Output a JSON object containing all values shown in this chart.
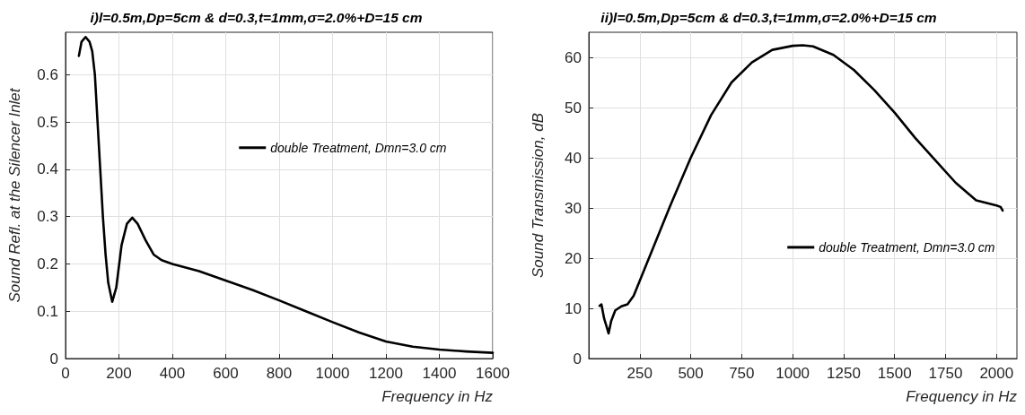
{
  "chart_data": [
    {
      "type": "line",
      "title": "i)l=0.5m,Dp=5cm & d=0.3,t=1mm,σ=2.0%+D=15 cm",
      "xlabel": "Frequency in Hz",
      "ylabel": "Sound Refl. at the Silencer Inlet",
      "xlim": [
        0,
        1600
      ],
      "xticks": [
        0,
        200,
        400,
        600,
        800,
        1000,
        1200,
        1400,
        1600
      ],
      "ylim": [
        0,
        0.69
      ],
      "yticks": [
        0,
        0.1,
        0.2,
        0.3,
        0.4,
        0.5,
        0.6
      ],
      "grid": true,
      "legend": "top right",
      "marker": "none",
      "line_style": "solid",
      "x": [
        50,
        60,
        75,
        90,
        100,
        110,
        120,
        130,
        140,
        150,
        160,
        175,
        190,
        210,
        230,
        250,
        270,
        300,
        330,
        360,
        400,
        500,
        600,
        700,
        800,
        900,
        1000,
        1100,
        1200,
        1300,
        1400,
        1500,
        1600
      ],
      "series": [
        {
          "name": "double Treatment, Dmn=3.0 cm",
          "color": "#000000",
          "values": [
            0.64,
            0.67,
            0.68,
            0.67,
            0.65,
            0.6,
            0.5,
            0.4,
            0.3,
            0.22,
            0.16,
            0.12,
            0.15,
            0.24,
            0.285,
            0.298,
            0.285,
            0.25,
            0.22,
            0.208,
            0.2,
            0.185,
            0.165,
            0.145,
            0.123,
            0.1,
            0.077,
            0.055,
            0.036,
            0.025,
            0.019,
            0.015,
            0.012
          ]
        }
      ]
    },
    {
      "type": "line",
      "title": "ii)l=0.5m,Dp=5cm & d=0.3,t=1mm,σ=2.0%+D=15 cm",
      "xlabel": "Frequency in Hz",
      "ylabel": "Sound Transmission, dB",
      "xlim": [
        0,
        2100
      ],
      "xticks": [
        250,
        500,
        750,
        1000,
        1250,
        1500,
        1750,
        2000
      ],
      "ylim": [
        0,
        65
      ],
      "yticks": [
        0,
        10,
        20,
        30,
        40,
        50,
        60
      ],
      "grid": true,
      "legend": "bottom right",
      "marker": "none",
      "line_style": "solid",
      "x": [
        53,
        62,
        75,
        90,
        97,
        110,
        130,
        160,
        190,
        220,
        250,
        300,
        350,
        400,
        500,
        600,
        700,
        800,
        900,
        1000,
        1050,
        1100,
        1200,
        1300,
        1400,
        1500,
        1600,
        1700,
        1800,
        1900,
        2000,
        2020,
        2030
      ],
      "series": [
        {
          "name": "double Treatment, Dmn=3.0 cm",
          "color": "#000000",
          "values": [
            10.5,
            10.8,
            8,
            6,
            5,
            7.5,
            9.6,
            10.4,
            10.8,
            12.5,
            15.5,
            20.5,
            25.5,
            30.5,
            40,
            48.5,
            55,
            59,
            61.5,
            62.3,
            62.4,
            62.2,
            60.5,
            57.5,
            53.5,
            49,
            44,
            39.5,
            35,
            31.5,
            30.5,
            30.2,
            29.5
          ]
        }
      ]
    }
  ]
}
